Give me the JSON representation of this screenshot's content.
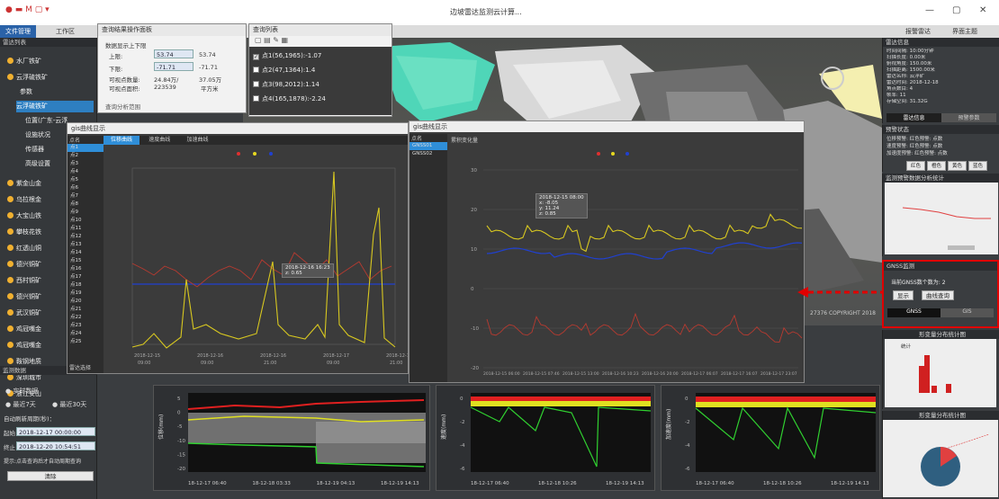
{
  "app": {
    "title": "边坡雷达监测云计算...",
    "file_menu": "文件管理",
    "work_menu": "工作区",
    "top_right_1": "报警雷达",
    "top_right_2": "界面主题"
  },
  "left_panel": {
    "header": "雷达列表",
    "tree": [
      {
        "label": "水厂铁矿"
      },
      {
        "label": "云浮硫铁矿"
      },
      {
        "label": "参数"
      },
      {
        "label": "云浮硫铁矿"
      },
      {
        "label": "位置(广东-云浮"
      },
      {
        "label": "设施状况"
      },
      {
        "label": "传感器"
      },
      {
        "label": "高级设置"
      },
      {
        "label": "紫金山金"
      },
      {
        "label": "乌拉根金"
      },
      {
        "label": "大宝山铁"
      },
      {
        "label": "攀枝花铁"
      },
      {
        "label": "红透山铜"
      },
      {
        "label": "德兴铜矿"
      },
      {
        "label": "西村铜矿"
      },
      {
        "label": "德兴铜矿"
      },
      {
        "label": "武汉铜矿"
      },
      {
        "label": "鸡冠嘴金"
      },
      {
        "label": "鸡冠嘴金"
      },
      {
        "label": "鞍钢地质"
      },
      {
        "label": "深圳城市"
      },
      {
        "label": "浙江安山"
      }
    ],
    "monitor_header": "监测数据",
    "realtime": "实时数据",
    "last7": "最近7天",
    "last30": "最近30天",
    "auto_refresh_label": "自动刷新周期(秒)：",
    "start_label": "起始",
    "start_value": "2018-12-17 00:00:00",
    "end_label": "终止",
    "end_value": "2018-12-20 10:54:51",
    "hint": "提示:点击查询后才自动周期查询",
    "clear_button": "清除"
  },
  "threshold_window": {
    "title": "查询结果操作面板",
    "group": "数据显示上下限",
    "upper_label": "上限:",
    "upper_value": "53.74",
    "upper_right": "53.74",
    "lower_label": "下限:",
    "lower_value": "-71.71",
    "lower_right": "-71.71",
    "visible_label": "可视点数量:",
    "visible_value": "24.84万/",
    "visible_right": "37.05万",
    "area_label": "可视点面积:",
    "area_value": "223539",
    "area_unit": "平方米",
    "extra": "查询分析范围"
  },
  "query_list": {
    "title": "查询列表",
    "items": [
      {
        "label": "点1(56,1965):-1.07",
        "checked": true
      },
      {
        "label": "点2(47,1364):1.4",
        "checked": false
      },
      {
        "label": "点3(98,2012):1.14",
        "checked": false
      },
      {
        "label": "点4(165,1878):-2.24",
        "checked": false
      }
    ]
  },
  "chart_window_1": {
    "title": "gis曲线显示",
    "tabs": [
      "位移曲线",
      "速度曲线",
      "加速曲线"
    ],
    "list_header": "点名",
    "list_items": [
      "点1",
      "点2",
      "点3",
      "点4",
      "点5",
      "点6",
      "点7",
      "点8",
      "点9",
      "点10",
      "点11",
      "点12",
      "点13",
      "点14",
      "点15",
      "点16",
      "点17",
      "点18",
      "点19",
      "点20",
      "点21",
      "点22",
      "点23",
      "点24",
      "点25"
    ],
    "footer": "雷达选择",
    "tooltip_time": "2018-12-16 16:23",
    "tooltip_value": "z: 0.65",
    "x_labels": [
      "2018-12-15",
      "2018-12-16",
      "2018-12-16",
      "2018-12-17",
      "2018-12-17"
    ],
    "x_sublabels": [
      "09:00",
      "09:00",
      "21:00",
      "09:00",
      "21:00"
    ]
  },
  "chart_window_2": {
    "title": "gis曲线显示",
    "list_header": "点名",
    "list_items": [
      "GNSS01",
      "GNSS02"
    ],
    "header": "累积变化量",
    "tooltip_time": "2018-12-15 08:00",
    "tooltip_x": "x: -8.05",
    "tooltip_y": "y: 11.24",
    "tooltip_z": "z: 0.85",
    "x_labels": [
      "2018-12-15 06:00",
      "2018-12-15 07:46",
      "2018-12-15 13:00",
      "2018-12-16 10:23",
      "2018-12-16 20:00",
      "2018-12-17 06:07",
      "2018-12-17 16:07",
      "2018-12-17 23:07"
    ],
    "y_ticks": [
      "30",
      "20",
      "10",
      "0",
      "-10",
      "-20"
    ]
  },
  "right_panel": {
    "info_header": "雷达信息",
    "info_lines": [
      "时间间隔: 10:00分钟",
      "扫描长度: 0.00米",
      "俯视角度: 150.00米",
      "扫描距离: 1500.00米",
      "雷达名称: 云浮矿",
      "雷达时间: 2018-12-18",
      "角点数目: 4",
      "帧率: 11",
      "存储空间: 31.32G"
    ],
    "tab1": "雷达信息",
    "tab2": "预警参数",
    "status_header": "预警状态",
    "status_lines": [
      "位移预警: 红色预警: 点数",
      "速度预警: 红色预警: 点数",
      "加速度预警: 红色预警: 点数"
    ],
    "status_buttons": [
      "红色",
      "橙色",
      "黄色",
      "蓝色"
    ],
    "trend_header": "监测预警数据分析统计",
    "gnss_header": "GNSS监测",
    "gnss_count_label": "当前GNSS数个数为:",
    "gnss_count_value": "2",
    "gnss_show": "显示",
    "gnss_query": "曲线查询",
    "gnss_tab1": "GNSS",
    "gnss_tab2": "GIS",
    "hist_header": "形变量分布统计图",
    "hist_caption": "统计",
    "pie_header": "形变量分布统计图",
    "coord_text": "27376  COPYRIGHT 2018"
  },
  "bottom_charts": {
    "left": {
      "ylabel": "位移(mm)",
      "y_ticks": [
        "5",
        "0",
        "-5",
        "-10",
        "-15",
        "-20"
      ],
      "x_labels": [
        "18-12-17 06:40",
        "18-12-18 03:33",
        "18-12-19 04:13",
        "18-12-19 14:13"
      ]
    },
    "mid": {
      "ylabel": "速度(mm)",
      "y_ticks": [
        "0",
        "-2",
        "-4",
        "-6"
      ],
      "x_labels": [
        "18-12-17 06:40",
        "18-12-18 10:26",
        "18-12-19 14:13"
      ]
    },
    "right": {
      "ylabel": "加速度(mm)",
      "y_ticks": [
        "0",
        "-2",
        "-4",
        "-6"
      ],
      "x_labels": [
        "18-12-17 06:40",
        "18-12-18 10:26",
        "18-12-19 14:13"
      ]
    }
  }
}
